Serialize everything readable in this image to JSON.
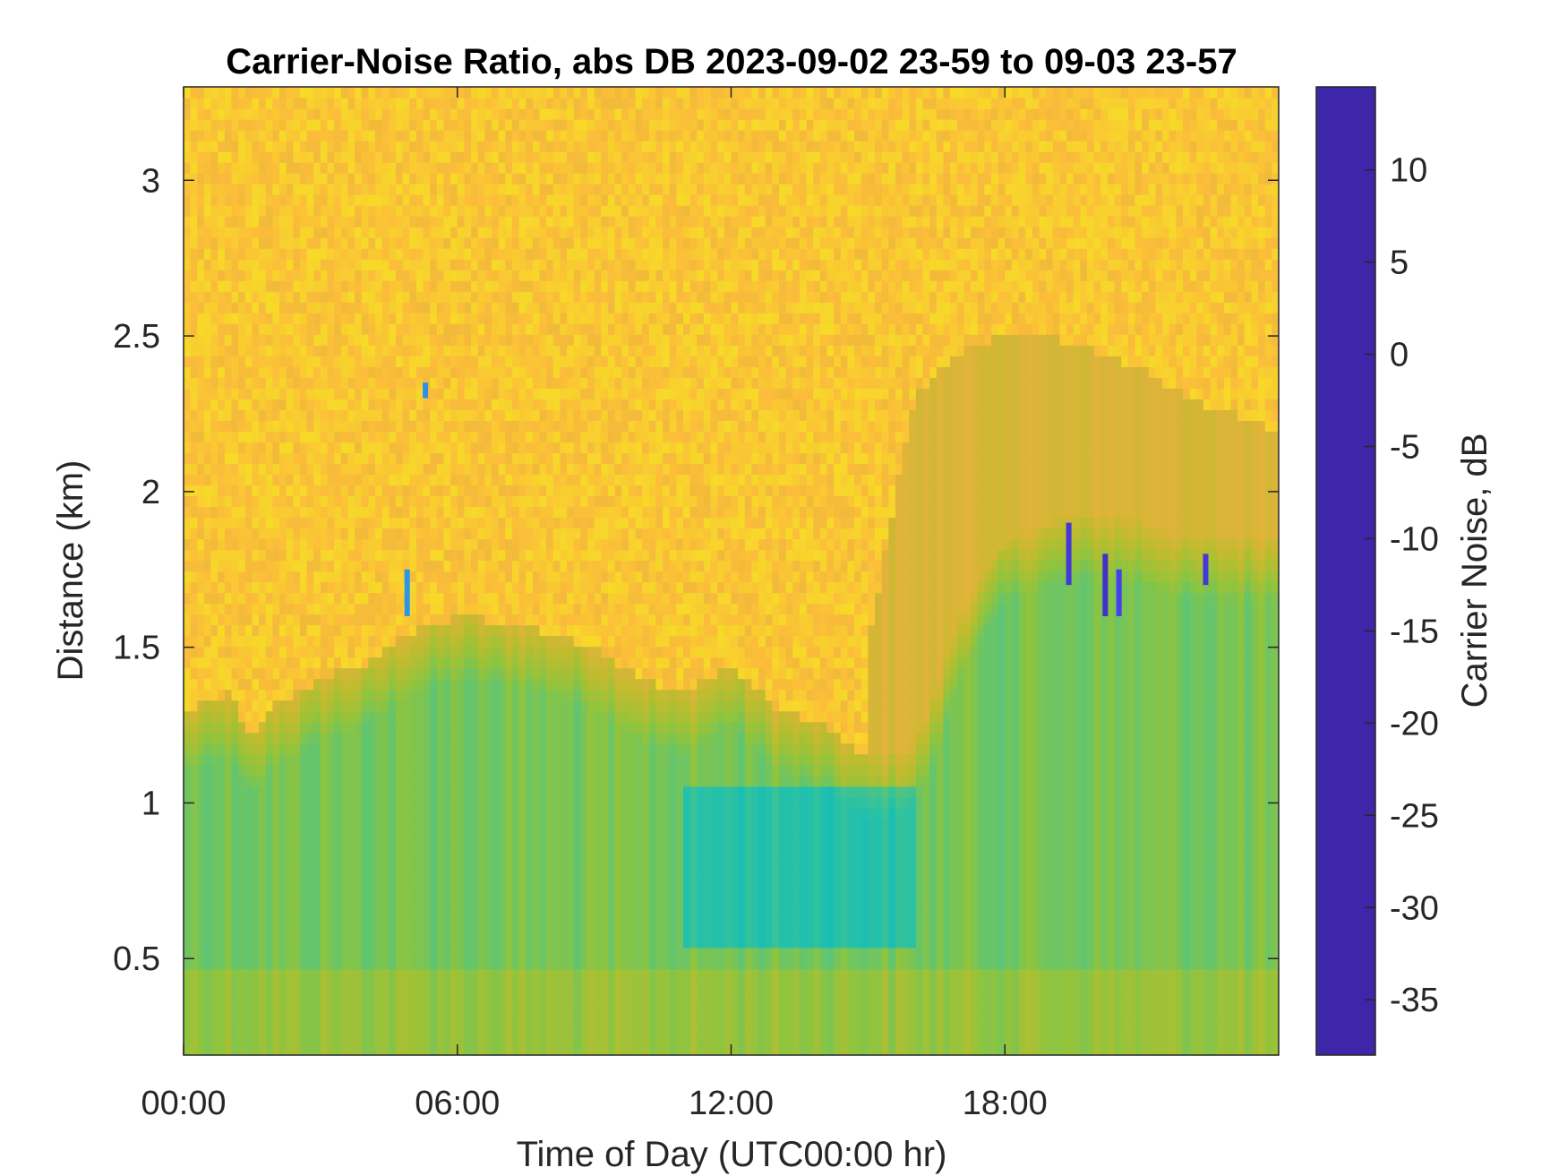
{
  "chart_data": {
    "type": "heatmap",
    "title": "Carrier-Noise Ratio, abs DB 2023-09-02 23-59 to 09-03 23-57",
    "xlabel": "Time of Day (UTC00:00 hr)",
    "ylabel": "Distance (km)",
    "x_ticks": [
      {
        "value": 0,
        "label": "00:00"
      },
      {
        "value": 6,
        "label": "06:00"
      },
      {
        "value": 12,
        "label": "12:00"
      },
      {
        "value": 18,
        "label": "18:00"
      }
    ],
    "y_ticks": [
      {
        "value": 0.5,
        "label": "0.5"
      },
      {
        "value": 1,
        "label": "1"
      },
      {
        "value": 1.5,
        "label": "1.5"
      },
      {
        "value": 2,
        "label": "2"
      },
      {
        "value": 2.5,
        "label": "2.5"
      },
      {
        "value": 3,
        "label": "3"
      }
    ],
    "xlim": [
      0,
      24
    ],
    "ylim": [
      0.19,
      3.3
    ],
    "colorbar": {
      "label": "Carrier Noise, dB",
      "clim": [
        -38,
        14.5
      ],
      "reversed": true,
      "ticks": [
        {
          "value": 10,
          "label": "10"
        },
        {
          "value": 5,
          "label": "5"
        },
        {
          "value": 0,
          "label": "0"
        },
        {
          "value": -5,
          "label": "-5"
        },
        {
          "value": -10,
          "label": "-10"
        },
        {
          "value": -15,
          "label": "-15"
        },
        {
          "value": -20,
          "label": "-20"
        },
        {
          "value": -25,
          "label": "-25"
        },
        {
          "value": -30,
          "label": "-30"
        },
        {
          "value": -35,
          "label": "-35"
        }
      ],
      "colormap": [
        "#3e26a8",
        "#4743f5",
        "#3b6ff9",
        "#2c93e8",
        "#1aaedb",
        "#0bbbc2",
        "#2fc2a0",
        "#5ac578",
        "#8fc43e",
        "#bdbc2e",
        "#e0b33a",
        "#fbbd3a",
        "#f6de26",
        "#f9fb15"
      ]
    },
    "grid": false,
    "boundary_layer_top_km": [
      {
        "time": 0,
        "height": 1.3
      },
      {
        "time": 0.5,
        "height": 1.32
      },
      {
        "time": 1,
        "height": 1.35
      },
      {
        "time": 1.5,
        "height": 1.22
      },
      {
        "time": 2,
        "height": 1.32
      },
      {
        "time": 2.5,
        "height": 1.35
      },
      {
        "time": 3,
        "height": 1.4
      },
      {
        "time": 4,
        "height": 1.45
      },
      {
        "time": 5,
        "height": 1.55
      },
      {
        "time": 6,
        "height": 1.6
      },
      {
        "time": 7,
        "height": 1.58
      },
      {
        "time": 8,
        "height": 1.55
      },
      {
        "time": 9,
        "height": 1.5
      },
      {
        "time": 10,
        "height": 1.4
      },
      {
        "time": 11,
        "height": 1.35
      },
      {
        "time": 12,
        "height": 1.45
      },
      {
        "time": 13,
        "height": 1.3
      },
      {
        "time": 14,
        "height": 1.25
      },
      {
        "time": 15,
        "height": 1.15
      },
      {
        "time": 16,
        "height": 1.18
      },
      {
        "time": 16.5,
        "height": 1.35
      },
      {
        "time": 17,
        "height": 1.6
      },
      {
        "time": 18,
        "height": 1.85
      },
      {
        "time": 19,
        "height": 1.9
      },
      {
        "time": 20,
        "height": 1.92
      },
      {
        "time": 21,
        "height": 1.9
      },
      {
        "time": 22,
        "height": 1.85
      },
      {
        "time": 23,
        "height": 1.85
      },
      {
        "time": 24,
        "height": 1.85
      }
    ],
    "residual_layer_top_km": [
      {
        "time": 15,
        "height": 1.5
      },
      {
        "time": 16,
        "height": 2.3
      },
      {
        "time": 17,
        "height": 2.45
      },
      {
        "time": 18,
        "height": 2.5
      },
      {
        "time": 19,
        "height": 2.5
      },
      {
        "time": 20,
        "height": 2.45
      },
      {
        "time": 21,
        "height": 2.4
      },
      {
        "time": 22,
        "height": 2.3
      },
      {
        "time": 23,
        "height": 2.25
      },
      {
        "time": 24,
        "height": 2.2
      }
    ],
    "min_value_region": {
      "time_start": 11,
      "time_end": 16,
      "height_start": 0.55,
      "height_end": 1.05,
      "value": -9
    },
    "spikes": [
      {
        "time": 19.4,
        "height_start": 1.7,
        "height_end": 1.9,
        "value": 12
      },
      {
        "time": 20.2,
        "height_start": 1.6,
        "height_end": 1.8,
        "value": 13
      },
      {
        "time": 20.5,
        "height_start": 1.6,
        "height_end": 1.75,
        "value": 11
      },
      {
        "time": 22.4,
        "height_start": 1.7,
        "height_end": 1.8,
        "value": 12
      },
      {
        "time": 4.9,
        "height_start": 1.6,
        "height_end": 1.75,
        "value": 2
      },
      {
        "time": 5.3,
        "height_start": 2.3,
        "height_end": 2.35,
        "value": 3
      }
    ]
  }
}
